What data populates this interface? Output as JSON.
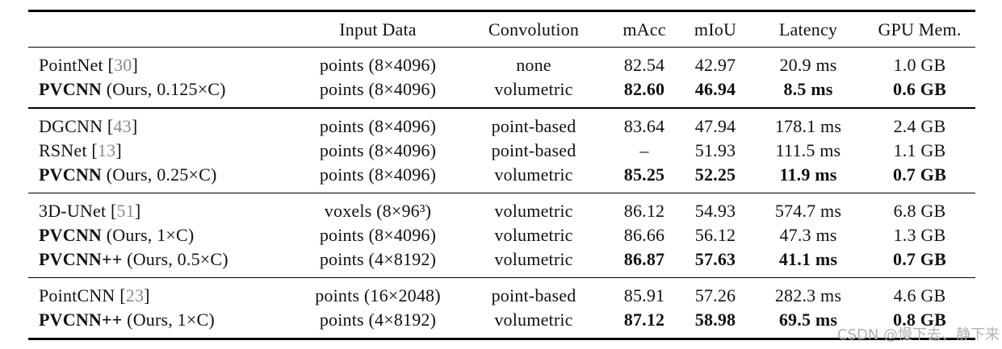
{
  "colors": {
    "text": "#111111",
    "citation": "#8a8a8a",
    "watermark": "#b2b2b2",
    "rule": "#000000"
  },
  "watermark": {
    "text": "CSDN @慢下去、静下来"
  },
  "table": {
    "headers": {
      "method": "",
      "input": "Input Data",
      "conv": "Convolution",
      "macc": "mAcc",
      "miou": "mIoU",
      "latency": "Latency",
      "gpu": "GPU Mem."
    },
    "groups": [
      {
        "rows": [
          {
            "name": "PointNet",
            "pre": " [",
            "cite": "30",
            "post": "]",
            "input": "points (8×4096)",
            "conv": "none",
            "macc": "82.54",
            "miou": "42.97",
            "latency": "20.9 ms",
            "gpu": "1.0 GB"
          },
          {
            "name": "PVCNN",
            "suffix": " (Ours, 0.125×C)",
            "input": "points (8×4096)",
            "conv": "volumetric",
            "macc": "82.60",
            "miou": "46.94",
            "latency": "8.5 ms",
            "gpu": "0.6 GB"
          }
        ]
      },
      {
        "rows": [
          {
            "name": "DGCNN",
            "pre": " [",
            "cite": "43",
            "post": "]",
            "input": "points (8×4096)",
            "conv": "point-based",
            "macc": "83.64",
            "miou": "47.94",
            "latency": "178.1 ms",
            "gpu": "2.4 GB"
          },
          {
            "name": "RSNet",
            "pre": " [",
            "cite": "13",
            "post": "]",
            "input": "points (8×4096)",
            "conv": "point-based",
            "macc": "–",
            "miou": "51.93",
            "latency": "111.5 ms",
            "gpu": "1.1 GB"
          },
          {
            "name": "PVCNN",
            "suffix": " (Ours, 0.25×C)",
            "input": "points (8×4096)",
            "conv": "volumetric",
            "macc": "85.25",
            "miou": "52.25",
            "latency": "11.9 ms",
            "gpu": "0.7 GB"
          }
        ]
      },
      {
        "rows": [
          {
            "name": "3D-UNet",
            "pre": " [",
            "cite": "51",
            "post": "]",
            "input": "voxels (8×96³)",
            "conv": "volumetric",
            "macc": "86.12",
            "miou": "54.93",
            "latency": "574.7 ms",
            "gpu": "6.8 GB"
          },
          {
            "name": "PVCNN",
            "suffix": " (Ours, 1×C)",
            "input": "points (8×4096)",
            "conv": "volumetric",
            "macc": "86.66",
            "miou": "56.12",
            "latency": "47.3 ms",
            "gpu": "1.3 GB"
          },
          {
            "name": "PVCNN++",
            "suffix": " (Ours, 0.5×C)",
            "input": "points (4×8192)",
            "conv": "volumetric",
            "macc": "86.87",
            "miou": "57.63",
            "latency": "41.1 ms",
            "gpu": "0.7 GB"
          }
        ]
      },
      {
        "rows": [
          {
            "name": "PointCNN",
            "pre": " [",
            "cite": "23",
            "post": "]",
            "input": "points (16×2048)",
            "conv": "point-based",
            "macc": "85.91",
            "miou": "57.26",
            "latency": "282.3 ms",
            "gpu": "4.6 GB"
          },
          {
            "name": "PVCNN++",
            "suffix": " (Ours, 1×C)",
            "input": "points (4×8192)",
            "conv": "volumetric",
            "macc": "87.12",
            "miou": "58.98",
            "latency": "69.5 ms",
            "gpu": "0.8 GB"
          }
        ]
      }
    ]
  }
}
